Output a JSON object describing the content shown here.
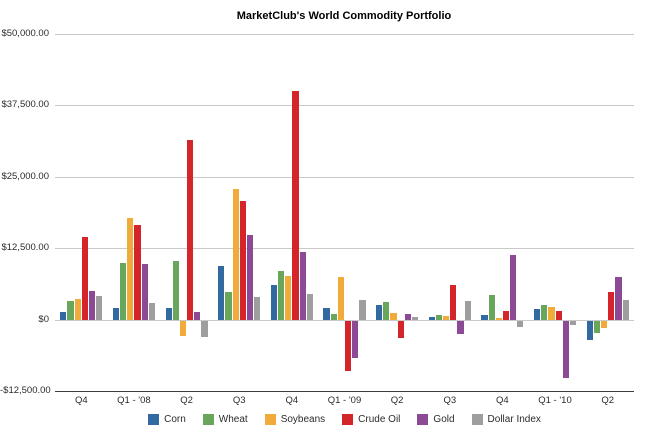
{
  "chart_data": {
    "type": "bar",
    "title": "MarketClub's World Commodity Portfolio",
    "categories": [
      "Q4",
      "Q1 - '08",
      "Q2",
      "Q3",
      "Q4",
      "Q1 - '09",
      "Q2",
      "Q3",
      "Q4",
      "Q1 - '10",
      "Q2"
    ],
    "series": [
      {
        "name": "Corn",
        "color": "#3269a0",
        "values": [
          1400,
          2100,
          2100,
          9400,
          6000,
          2100,
          2600,
          400,
          900,
          1900,
          -3400
        ]
      },
      {
        "name": "Wheat",
        "color": "#68a65b",
        "values": [
          3300,
          9900,
          10200,
          4800,
          8600,
          1000,
          3100,
          900,
          4400,
          2500,
          -2100
        ]
      },
      {
        "name": "Soybeans",
        "color": "#f1ab3b",
        "values": [
          3600,
          17800,
          -2700,
          22900,
          7700,
          7400,
          1200,
          600,
          300,
          2300,
          -1300
        ]
      },
      {
        "name": "Crude Oil",
        "color": "#d4262a",
        "values": [
          14400,
          16500,
          31400,
          20800,
          40000,
          -8800,
          -3100,
          6100,
          1600,
          1600,
          4900
        ]
      },
      {
        "name": "Gold",
        "color": "#8c4a94",
        "values": [
          5100,
          9700,
          1300,
          14900,
          11900,
          -6600,
          1000,
          -2300,
          11300,
          -10000,
          7400
        ]
      },
      {
        "name": "Dollar Index",
        "color": "#9e9e9e",
        "values": [
          4100,
          2900,
          -2900,
          4000,
          4500,
          3500,
          500,
          3300,
          -1100,
          -800,
          3400
        ]
      }
    ],
    "ylim": [
      -12500,
      50000
    ],
    "yticks": [
      {
        "value": 50000,
        "label": "$50,000.00"
      },
      {
        "value": 37500,
        "label": "$37,500.00"
      },
      {
        "value": 25000,
        "label": "$25,000.00"
      },
      {
        "value": 12500,
        "label": "$12,500.00"
      },
      {
        "value": 0,
        "label": "$0"
      },
      {
        "value": -12500,
        "label": "-$12,500.00"
      }
    ],
    "grid": true,
    "legend_position": "bottom",
    "xlabel": "",
    "ylabel": ""
  }
}
